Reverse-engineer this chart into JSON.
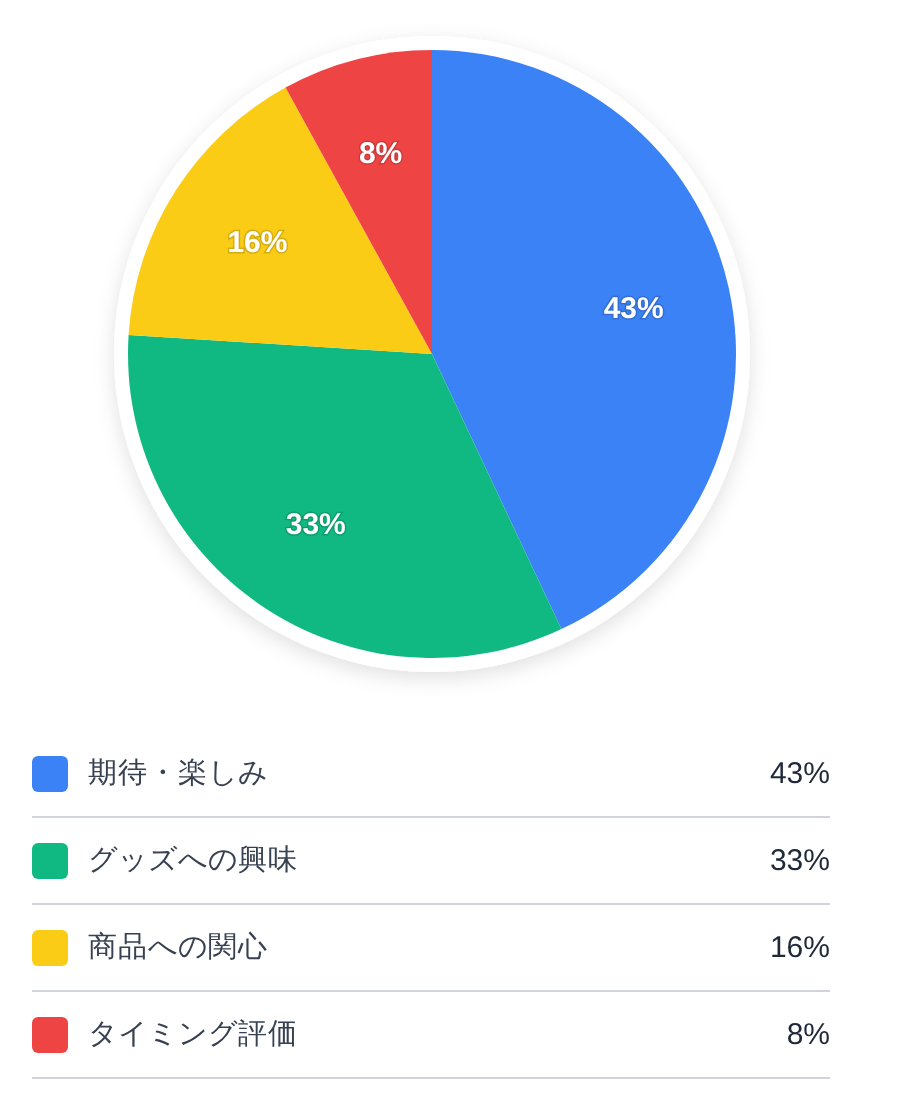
{
  "chart_data": {
    "type": "pie",
    "categories": [
      "期待・楽しみ",
      "グッズへの興味",
      "商品への関心",
      "タイミング評価"
    ],
    "values": [
      43,
      33,
      16,
      8
    ],
    "colors": [
      "#3b82f6",
      "#10b981",
      "#facc15",
      "#ef4444"
    ],
    "value_labels": [
      "43%",
      "33%",
      "16%",
      "8%"
    ],
    "legend": "bottom"
  }
}
